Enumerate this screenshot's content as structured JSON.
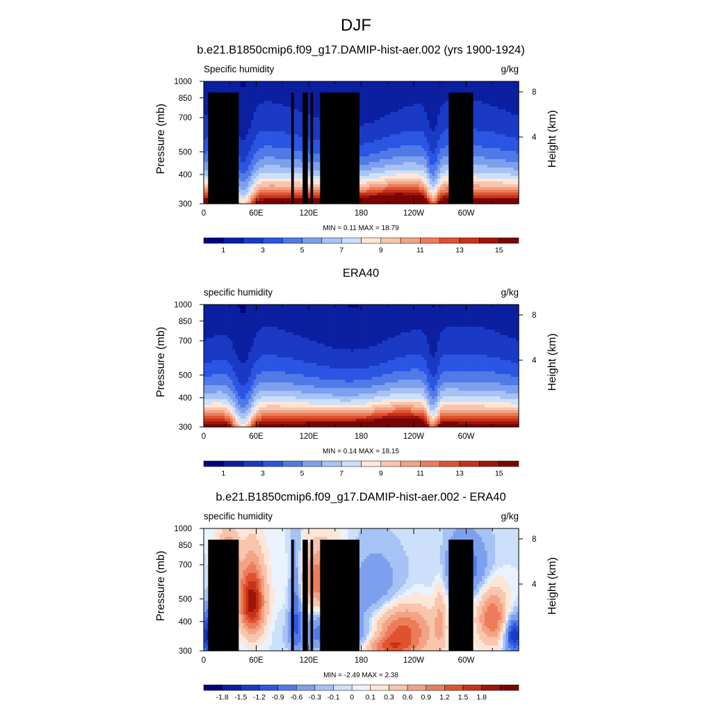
{
  "figure_title": "DJF",
  "colors": {
    "abs_scale": [
      "#00007f",
      "#0b1fa0",
      "#1a3ac6",
      "#2b55e3",
      "#4f7ae8",
      "#7da0ee",
      "#a7c2f4",
      "#cde0fa",
      "#fde6d8",
      "#f8c5ad",
      "#f3a385",
      "#ec7c5a",
      "#e0522f",
      "#c7321a",
      "#9e150b",
      "#7a0403"
    ],
    "diff_scale": [
      "#00007f",
      "#0b1fa0",
      "#1a3ac6",
      "#2b55e3",
      "#4f7ae8",
      "#7da0ee",
      "#a7c2f4",
      "#cde0fa",
      "#eaf2fd",
      "#fde6d8",
      "#f8c5ad",
      "#f3a385",
      "#ec7c5a",
      "#e0522f",
      "#c7321a",
      "#9e150b",
      "#7a0403"
    ],
    "topography": "#000000"
  },
  "chart_data": [
    {
      "type": "heatmap",
      "title": "b.e21.B1850cmip6.f09_g17.DAMIP-hist-aer.002 (yrs 1900-1924)",
      "left_label": "Specific humidity",
      "right_label": "g/kg",
      "ylabel": "Pressure (mb)",
      "y2label": "Height (km)",
      "x_ticks": [
        "0",
        "60E",
        "120E",
        "180",
        "120W",
        "60W"
      ],
      "y_ticks": [
        "300",
        "400",
        "500",
        "700",
        "850",
        "1000"
      ],
      "y2_ticks": [
        "8",
        "4"
      ],
      "stats": "MIN =   0.11  MAX =  18.79",
      "colorbar_labels": [
        "1",
        "3",
        "5",
        "7",
        "9",
        "11",
        "13",
        "15"
      ],
      "min": 0.11,
      "max": 18.79,
      "xlim": [
        0,
        360
      ],
      "ylim": [
        1000,
        300
      ]
    },
    {
      "type": "heatmap",
      "title": "ERA40",
      "left_label": "specific humidity",
      "right_label": "g/kg",
      "ylabel": "Pressure (mb)",
      "y2label": "Height (km)",
      "x_ticks": [
        "0",
        "60E",
        "120E",
        "180",
        "120W",
        "60W"
      ],
      "y_ticks": [
        "300",
        "400",
        "500",
        "700",
        "850",
        "1000"
      ],
      "y2_ticks": [
        "8",
        "4"
      ],
      "stats": "MIN =   0.14  MAX =  18.15",
      "colorbar_labels": [
        "1",
        "3",
        "5",
        "7",
        "9",
        "11",
        "13",
        "15"
      ],
      "min": 0.14,
      "max": 18.15,
      "xlim": [
        0,
        360
      ],
      "ylim": [
        1000,
        300
      ]
    },
    {
      "type": "heatmap",
      "title": "b.e21.B1850cmip6.f09_g17.DAMIP-hist-aer.002 - ERA40",
      "left_label": "specific humidity",
      "right_label": "g/kg",
      "ylabel": "Pressure (mb)",
      "y2label": "Height (km)",
      "x_ticks": [
        "0",
        "60E",
        "120E",
        "180",
        "120W",
        "60W"
      ],
      "y_ticks": [
        "300",
        "400",
        "500",
        "700",
        "850",
        "1000"
      ],
      "y2_ticks": [
        "8",
        "4"
      ],
      "stats": "MIN =  -2.49  MAX =   2.38",
      "colorbar_labels": [
        "-1.8",
        "-1.5",
        "-1.2",
        "-0.9",
        "-0.6",
        "-0.3",
        "-0.1",
        "0",
        "0.1",
        "0.3",
        "0.6",
        "0.9",
        "1.2",
        "1.5",
        "1.8"
      ],
      "min": -2.49,
      "max": 2.38,
      "xlim": [
        0,
        360
      ],
      "ylim": [
        1000,
        300
      ]
    }
  ]
}
